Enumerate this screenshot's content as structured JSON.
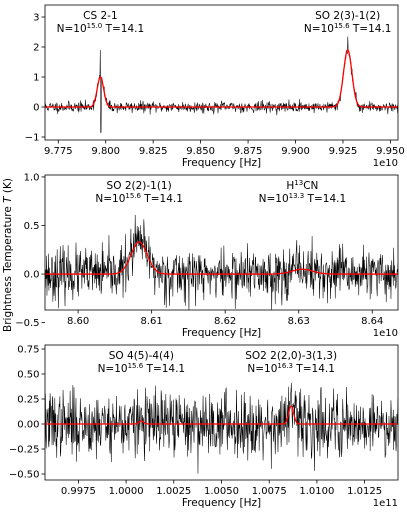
{
  "ylabel": "Brightness Temperature T (K)",
  "chart_data": [
    {
      "type": "line",
      "xlabel": "Frequency [Hz]",
      "offset_text": "1e10",
      "xlim": [
        9.768,
        9.954
      ],
      "ylim": [
        -1.1,
        3.4
      ],
      "xticks": [
        9.775,
        9.8,
        9.825,
        9.85,
        9.875,
        9.9,
        9.925,
        9.95
      ],
      "xtick_labels": [
        "9.775",
        "9.800",
        "9.825",
        "9.850",
        "9.875",
        "9.900",
        "9.925",
        "9.950"
      ],
      "yticks": [
        -1,
        0,
        1,
        2,
        3
      ],
      "ytick_labels": [
        "−1",
        "0",
        "1",
        "2",
        "3"
      ],
      "noise": 0.09,
      "seed": 11,
      "lines": [
        {
          "center": 9.7972,
          "width": 0.0017,
          "peak": 1.0,
          "spike": 1.9,
          "dip": -0.85
        },
        {
          "center": 9.9275,
          "width": 0.0022,
          "peak": 1.9,
          "spike": 2.35
        }
      ],
      "annotations": [
        {
          "title": "CS 2-1",
          "n_base": "N=10",
          "n_exp": "15.0",
          "t_text": " T=14.1",
          "x": 9.7972
        },
        {
          "title": "SO 2(3)-1(2)",
          "n_base": "N=10",
          "n_exp": "15.6",
          "t_text": " T=14.1",
          "x": 9.9275
        }
      ]
    },
    {
      "type": "line",
      "xlabel": "Frequency [Hz]",
      "offset_text": "1e10",
      "xlim": [
        8.5955,
        8.6435
      ],
      "ylim": [
        -0.37,
        1.02
      ],
      "xticks": [
        8.6,
        8.61,
        8.62,
        8.63,
        8.64
      ],
      "xtick_labels": [
        "8.60",
        "8.61",
        "8.62",
        "8.63",
        "8.64"
      ],
      "yticks": [
        -0.5,
        0.0,
        0.5,
        1.0
      ],
      "ytick_labels": [
        "−0.5",
        "0.0",
        "0.5",
        "1.0"
      ],
      "noise": 0.13,
      "seed": 23,
      "lines": [
        {
          "center": 8.6083,
          "width": 0.0011,
          "peak": 0.33
        },
        {
          "center": 8.6305,
          "width": 0.0014,
          "peak": 0.05,
          "dip": -0.3,
          "dip_at": 8.6339
        }
      ],
      "annotations": [
        {
          "title": "SO 2(2)-1(1)",
          "n_base": "N=10",
          "n_exp": "15.6",
          "t_text": " T=14.1",
          "x": 8.6083
        },
        {
          "title_pre": "H",
          "title_sup": "13",
          "title_post": "CN",
          "n_base": "N=10",
          "n_exp": "13.3",
          "t_text": " T=14.1",
          "x": 8.6305
        }
      ]
    },
    {
      "type": "line",
      "xlabel": "Frequency [Hz]",
      "offset_text": "1e11",
      "xlim": [
        0.99575,
        1.01425
      ],
      "ylim": [
        -0.56,
        0.79
      ],
      "xticks": [
        0.9975,
        1.0,
        1.0025,
        1.005,
        1.0075,
        1.01,
        1.0125
      ],
      "xtick_labels": [
        "0.9975",
        "1.0000",
        "1.0025",
        "1.0050",
        "1.0075",
        "1.0100",
        "1.0125"
      ],
      "yticks": [
        -0.5,
        -0.25,
        0.0,
        0.25,
        0.5,
        0.75
      ],
      "ytick_labels": [
        "−0.50",
        "−0.25",
        "0.00",
        "0.25",
        "0.50",
        "0.75"
      ],
      "noise": 0.16,
      "seed": 37,
      "lines": [
        {
          "center": 1.0008,
          "width": 0.00012,
          "peak": 0.03
        },
        {
          "center": 1.00865,
          "width": 0.00013,
          "peak": 0.18
        }
      ],
      "annotations": [
        {
          "title": "SO 4(5)-4(4)",
          "n_base": "N=10",
          "n_exp": "15.6",
          "t_text": " T=14.1",
          "x": 1.0008
        },
        {
          "title": "SO2 2(2,0)-3(1,3)",
          "n_base": "N=10",
          "n_exp": "16.3",
          "t_text": " T=14.1",
          "x": 1.00865
        }
      ]
    }
  ],
  "colors": {
    "observed": "#000000",
    "model": "#ff0000",
    "axes": "#000000"
  }
}
